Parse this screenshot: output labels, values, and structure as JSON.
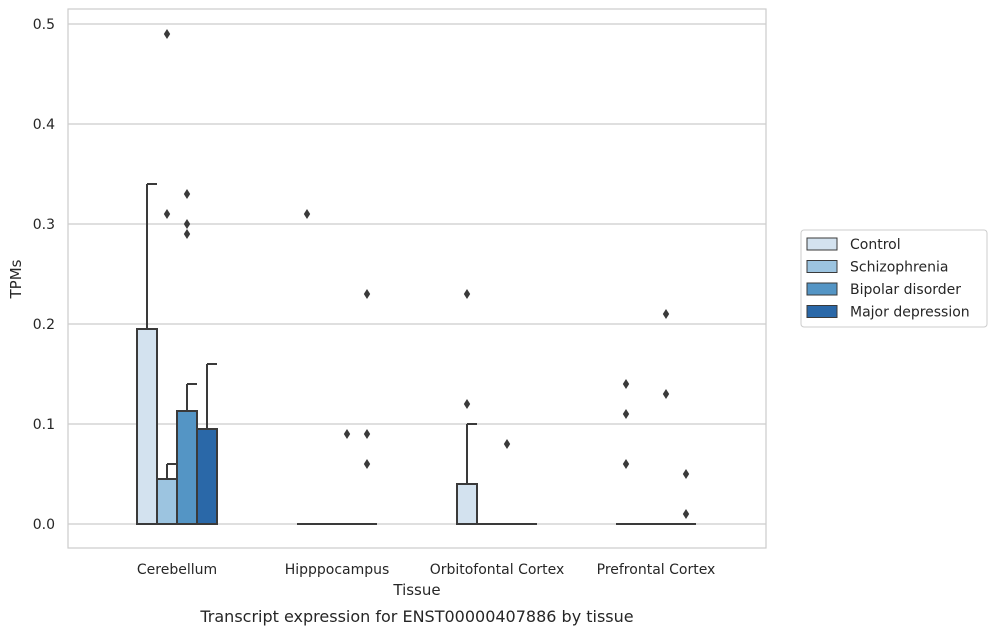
{
  "chart_data": {
    "type": "bar",
    "title": "",
    "caption": "Transcript expression for ENST00000407886 by tissue",
    "xlabel": "Tissue",
    "ylabel": "TPMs",
    "ylim": [
      -0.023,
      0.515
    ],
    "yticks": [
      0.0,
      0.1,
      0.2,
      0.3,
      0.4,
      0.5
    ],
    "ytick_labels": [
      "0.0",
      "0.1",
      "0.2",
      "0.3",
      "0.4",
      "0.5"
    ],
    "grid": "horizontal",
    "legend_position": "right",
    "categories": [
      "Cerebellum",
      "Hipppocampus",
      "Orbitofontal Cortex",
      "Prefrontal Cortex"
    ],
    "series": [
      {
        "name": "Control",
        "color": "#d3e2ef",
        "values": [
          0.195,
          0.0,
          0.04,
          0.0
        ],
        "error_upper": [
          0.34,
          null,
          0.1,
          null
        ],
        "outliers": [
          [],
          [
            0.31
          ],
          [
            0.12,
            0.23
          ],
          [
            0.06,
            0.11,
            0.14
          ]
        ]
      },
      {
        "name": "Schizophrenia",
        "color": "#9cc4e0",
        "values": [
          0.045,
          0.0,
          0.0,
          0.0
        ],
        "error_upper": [
          0.06,
          null,
          null,
          null
        ],
        "outliers": [
          [
            0.31,
            0.49
          ],
          [],
          [],
          []
        ]
      },
      {
        "name": "Bipolar disorder",
        "color": "#5495c5",
        "values": [
          0.113,
          0.0,
          0.0,
          0.0
        ],
        "error_upper": [
          0.14,
          null,
          null,
          null
        ],
        "outliers": [
          [
            0.29,
            0.3,
            0.33
          ],
          [
            0.09
          ],
          [
            0.08
          ],
          [
            0.13,
            0.21
          ]
        ]
      },
      {
        "name": "Major depression",
        "color": "#2a68a8",
        "values": [
          0.095,
          0.0,
          0.0,
          0.0
        ],
        "error_upper": [
          0.16,
          null,
          null,
          null
        ],
        "outliers": [
          [],
          [
            0.06,
            0.09,
            0.23
          ],
          [],
          [
            0.01,
            0.05
          ]
        ]
      }
    ]
  }
}
